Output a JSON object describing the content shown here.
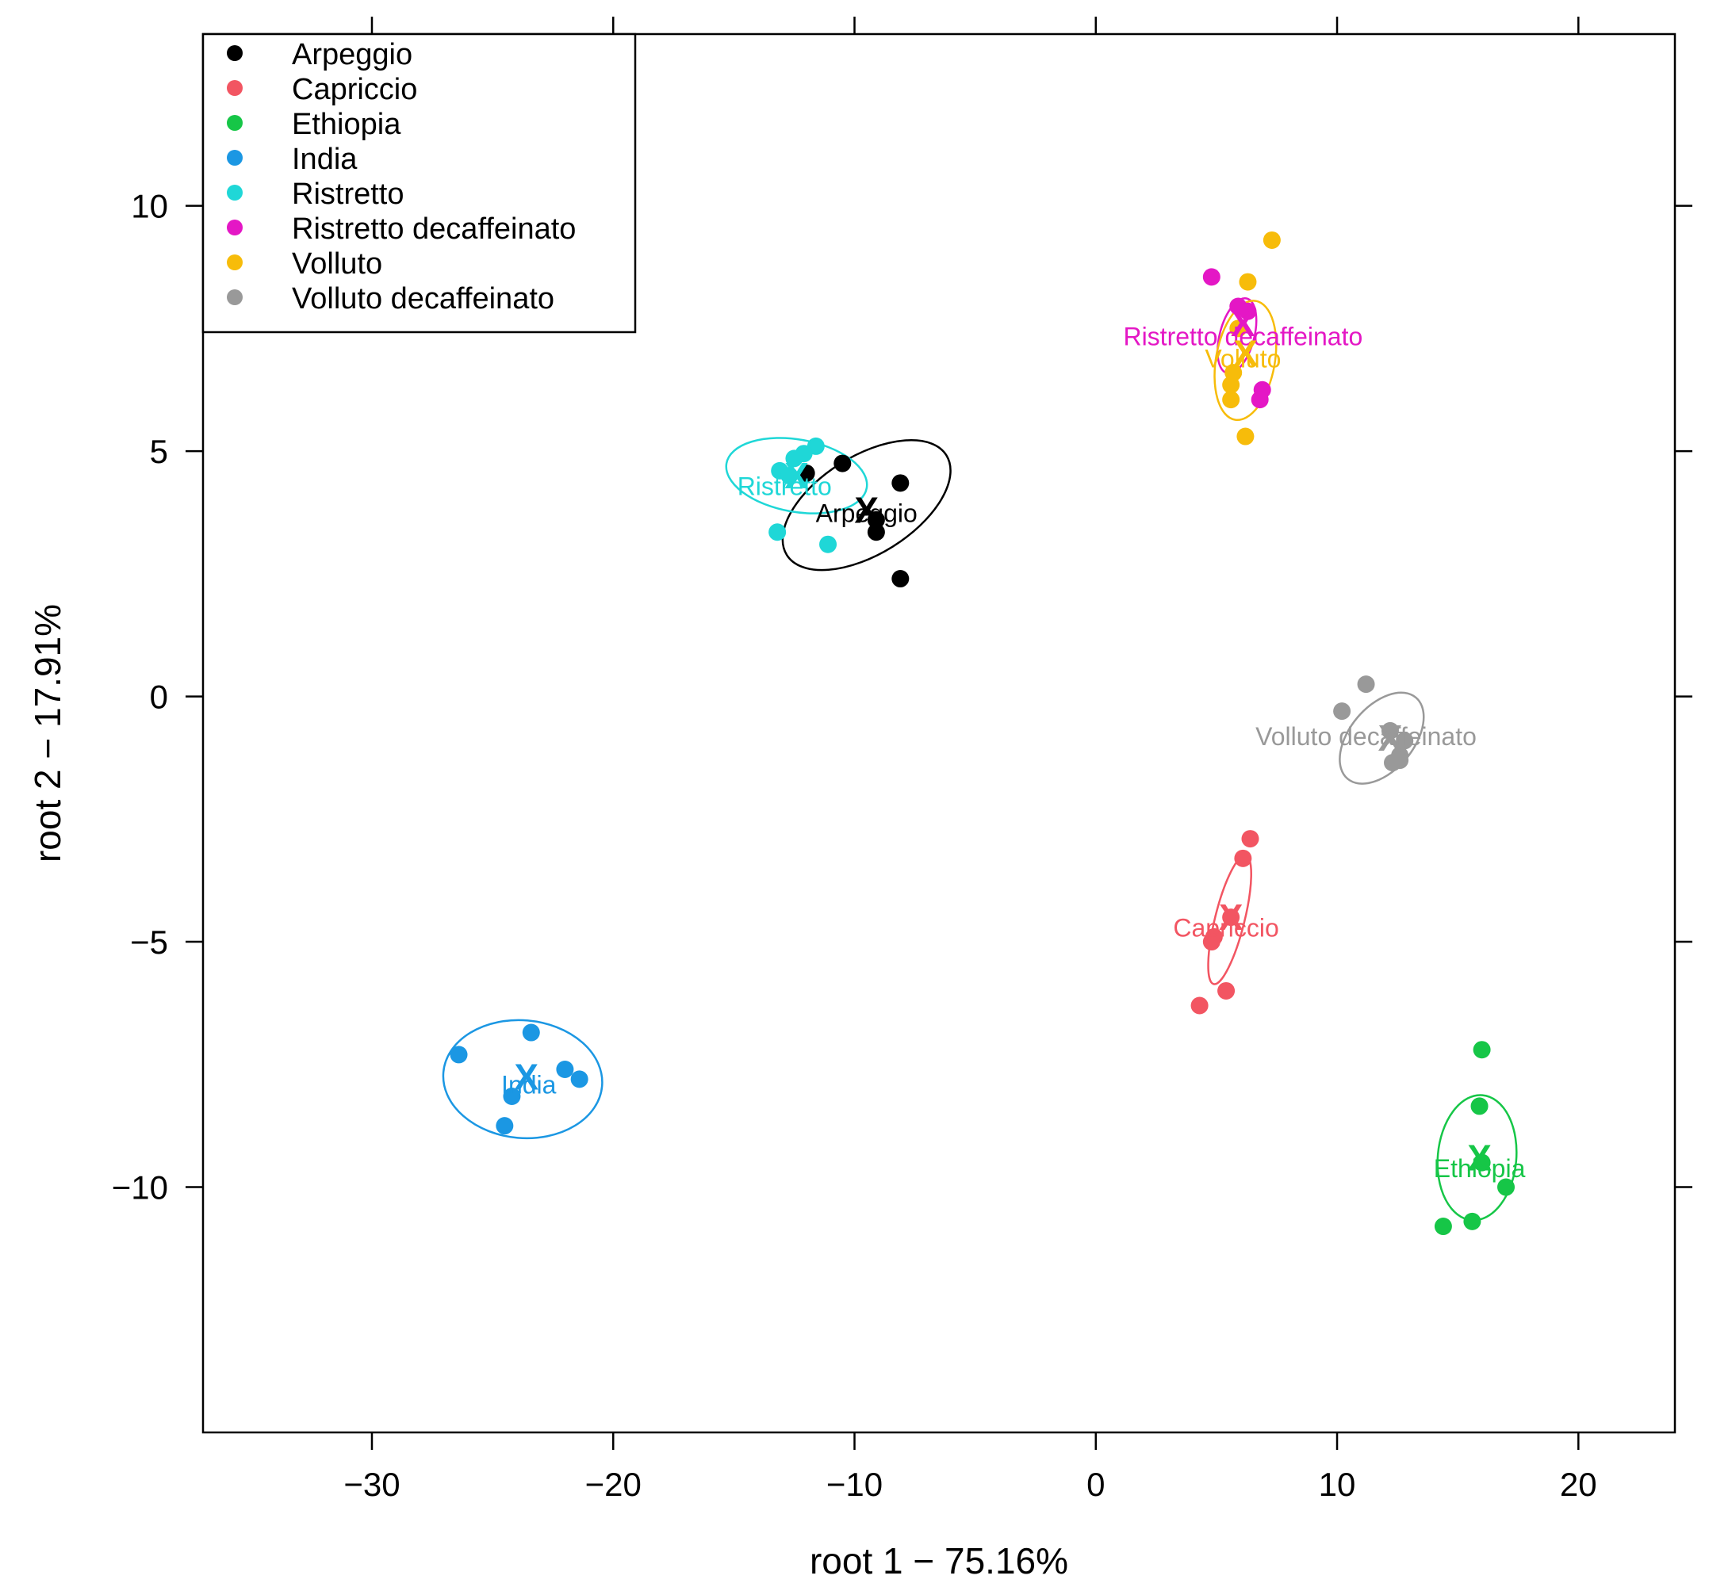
{
  "chart_data": {
    "type": "scatter",
    "title": "",
    "xlabel": "root 1 − 75.16%",
    "ylabel": "root 2 − 17.91%",
    "xlim": [
      -37,
      24
    ],
    "ylim": [
      -15,
      13.5
    ],
    "xticks": [
      -30,
      -20,
      -10,
      0,
      10,
      20
    ],
    "yticks": [
      -10,
      -5,
      0,
      5,
      10
    ],
    "xtick_labels": [
      "−30",
      "−20",
      "−10",
      "0",
      "10",
      "20"
    ],
    "ytick_labels": [
      "−10",
      "−5",
      "0",
      "5",
      "10"
    ],
    "legend_position": "top-left",
    "centroid_marker": "X",
    "series": [
      {
        "name": "Arpeggio",
        "color": "#000000",
        "points": [
          [
            -12.0,
            4.55
          ],
          [
            -10.5,
            4.75
          ],
          [
            -8.1,
            4.35
          ],
          [
            -9.1,
            3.6
          ],
          [
            -9.1,
            3.35
          ],
          [
            -8.1,
            2.4
          ]
        ],
        "centroid": [
          -9.5,
          3.8
        ],
        "label_pos": [
          -9.5,
          3.75
        ],
        "ellipse": {
          "cx": -9.5,
          "cy": 3.9,
          "rx": 3.9,
          "ry": 1.0,
          "angle": -32
        }
      },
      {
        "name": "Capriccio",
        "color": "#f25562",
        "points": [
          [
            6.4,
            -2.9
          ],
          [
            6.1,
            -3.3
          ],
          [
            5.6,
            -4.5
          ],
          [
            4.9,
            -4.9
          ],
          [
            4.8,
            -5.0
          ],
          [
            5.4,
            -6.0
          ],
          [
            4.3,
            -6.3
          ]
        ],
        "centroid": [
          5.6,
          -4.5
        ],
        "label_pos": [
          5.4,
          -4.7
        ],
        "ellipse": {
          "cx": 5.55,
          "cy": -4.55,
          "rx": 2.75,
          "ry": 0.3,
          "angle": -76
        }
      },
      {
        "name": "Ethiopia",
        "color": "#16c647",
        "points": [
          [
            16.0,
            -7.2
          ],
          [
            15.9,
            -8.35
          ],
          [
            16.0,
            -9.5
          ],
          [
            17.0,
            -10.0
          ],
          [
            15.6,
            -10.7
          ],
          [
            14.4,
            -10.8
          ]
        ],
        "centroid": [
          15.9,
          -9.4
        ],
        "label_pos": [
          15.9,
          -9.6
        ],
        "ellipse": {
          "cx": 15.8,
          "cy": -9.4,
          "rx": 2.6,
          "ry": 0.8,
          "angle": -85
        }
      },
      {
        "name": "India",
        "color": "#1b97e3",
        "points": [
          [
            -26.4,
            -7.3
          ],
          [
            -23.4,
            -6.85
          ],
          [
            -22.0,
            -7.6
          ],
          [
            -21.4,
            -7.8
          ],
          [
            -24.2,
            -8.15
          ],
          [
            -24.5,
            -8.75
          ]
        ],
        "centroid": [
          -23.6,
          -7.75
        ],
        "label_pos": [
          -23.5,
          -7.9
        ],
        "ellipse": {
          "cx": -23.75,
          "cy": -7.8,
          "rx": 3.3,
          "ry": 1.2,
          "angle": 5
        }
      },
      {
        "name": "Ristretto",
        "color": "#1fd7d7",
        "points": [
          [
            -11.6,
            5.1
          ],
          [
            -12.1,
            4.95
          ],
          [
            -12.5,
            4.85
          ],
          [
            -13.1,
            4.6
          ],
          [
            -12.7,
            4.5
          ],
          [
            -13.2,
            3.35
          ],
          [
            -11.1,
            3.1
          ]
        ],
        "centroid": [
          -12.4,
          4.5
        ],
        "label_pos": [
          -12.9,
          4.3
        ],
        "ellipse": {
          "cx": -12.4,
          "cy": 4.5,
          "rx": 1.5,
          "ry": 1.45,
          "angle": -80
        }
      },
      {
        "name": "Ristretto decaffeinato",
        "color": "#e417c5",
        "points": [
          [
            4.8,
            8.55
          ],
          [
            5.9,
            7.95
          ],
          [
            6.3,
            7.85
          ],
          [
            6.9,
            6.25
          ],
          [
            6.8,
            6.05
          ]
        ],
        "centroid": [
          6.1,
          7.6
        ],
        "label_pos": [
          6.1,
          7.35
        ],
        "ellipse": {
          "cx": 5.85,
          "cy": 7.35,
          "rx": 1.6,
          "ry": 0.35,
          "angle": -75
        }
      },
      {
        "name": "Volluto",
        "color": "#f7bc0a",
        "points": [
          [
            7.3,
            9.3
          ],
          [
            6.3,
            8.45
          ],
          [
            5.9,
            7.5
          ],
          [
            5.6,
            6.35
          ],
          [
            5.6,
            6.05
          ],
          [
            6.2,
            5.3
          ],
          [
            5.7,
            6.6
          ]
        ],
        "centroid": [
          6.2,
          7.0
        ],
        "label_pos": [
          6.1,
          6.9
        ],
        "ellipse": {
          "cx": 6.2,
          "cy": 6.85,
          "rx": 2.5,
          "ry": 0.6,
          "angle": -80
        }
      },
      {
        "name": "Volluto decaffeinato",
        "color": "#999999",
        "points": [
          [
            11.2,
            0.25
          ],
          [
            10.2,
            -0.3
          ],
          [
            12.2,
            -0.7
          ],
          [
            12.8,
            -0.9
          ],
          [
            12.6,
            -1.2
          ],
          [
            12.3,
            -1.35
          ],
          [
            12.6,
            -1.3
          ]
        ],
        "centroid": [
          12.2,
          -0.85
        ],
        "label_pos": [
          11.2,
          -0.8
        ],
        "ellipse": {
          "cx": 11.85,
          "cy": -0.85,
          "rx": 2.2,
          "ry": 0.65,
          "angle": -50
        }
      }
    ]
  }
}
